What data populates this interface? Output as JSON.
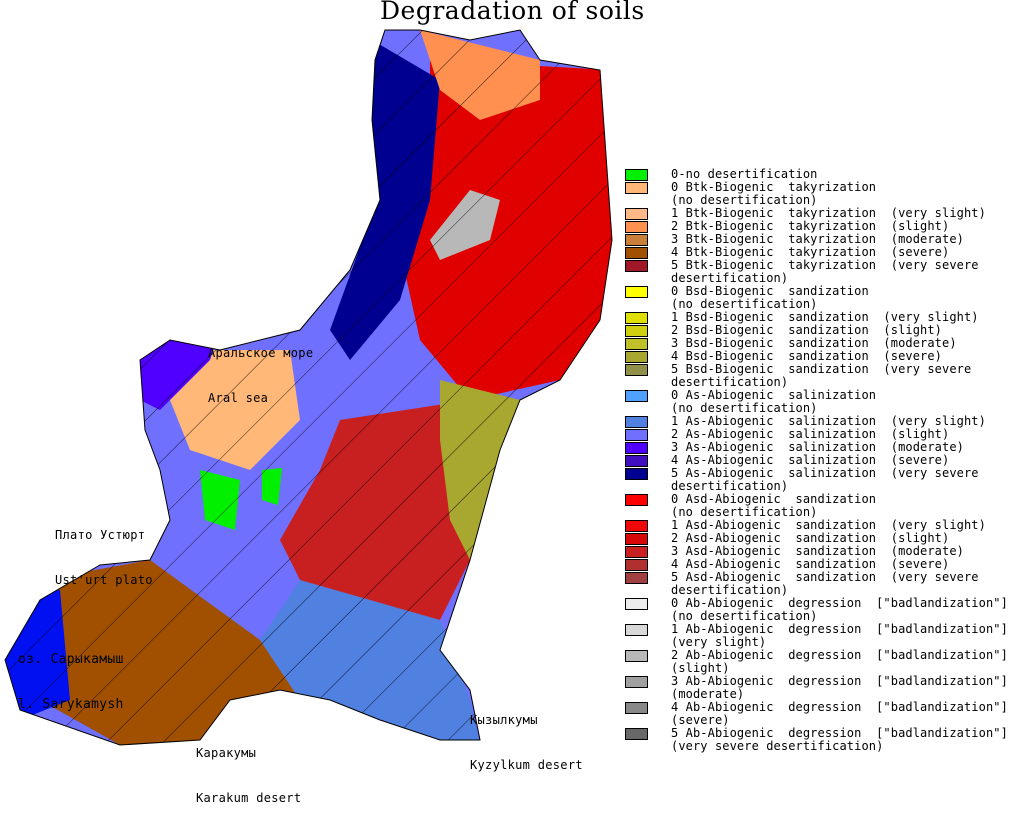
{
  "title": "Degradation of soils",
  "map_labels": {
    "aral_ru": "Аральское море",
    "aral_en": "Aral sea",
    "ustyurt_ru": "Плато Устюрт",
    "ustyurt_en": "Ust'urt plato",
    "sarykamysh_ru": "оз. Сарыкамыш",
    "sarykamysh_en": "l. Sarykamysh",
    "kyzylkum_ru": "Кызылкумы",
    "kyzylkum_en": "Kyzylkum desert",
    "karakum_ru": "Каракумы",
    "karakum_en": "Karakum desert"
  },
  "legend": [
    {
      "color": "#00f000",
      "line1": "0-no desertification",
      "line2": ""
    },
    {
      "color": "#ffb878",
      "line1": "0 Btk-Biogenic  takyrization",
      "line2": "(no desertification)"
    },
    {
      "color": "#ffb888",
      "line1": "1 Btk-Biogenic  takyrization  (very slight)",
      "line2": ""
    },
    {
      "color": "#ff9050",
      "line1": "2 Btk-Biogenic  takyrization  (slight)",
      "line2": ""
    },
    {
      "color": "#c88038",
      "line1": "3 Btk-Biogenic  takyrization  (moderate)",
      "line2": ""
    },
    {
      "color": "#a05000",
      "line1": "4 Btk-Biogenic  takyrization  (severe)",
      "line2": ""
    },
    {
      "color": "#a01828",
      "line1": "5 Btk-Biogenic  takyrization  (very severe",
      "line2": "desertification)"
    },
    {
      "color": "#ffff00",
      "line1": "0 Bsd-Biogenic  sandization",
      "line2": "(no desertification)"
    },
    {
      "color": "#e0e000",
      "line1": "1 Bsd-Biogenic  sandization  (very slight)",
      "line2": ""
    },
    {
      "color": "#d0d010",
      "line1": "2 Bsd-Biogenic  sandization  (slight)",
      "line2": ""
    },
    {
      "color": "#c0c028",
      "line1": "3 Bsd-Biogenic  sandization  (moderate)",
      "line2": ""
    },
    {
      "color": "#a8a830",
      "line1": "4 Bsd-Biogenic  sandization  (severe)",
      "line2": ""
    },
    {
      "color": "#909048",
      "line1": "5 Bsd-Biogenic  sandization  (very severe",
      "line2": "desertification)"
    },
    {
      "color": "#50a0ff",
      "line1": "0 As-Abiogenic  salinization",
      "line2": "(no desertification)"
    },
    {
      "color": "#5080e0",
      "line1": "1 As-Abiogenic  salinization  (very slight)",
      "line2": ""
    },
    {
      "color": "#7070ff",
      "line1": "2 As-Abiogenic  salinization  (slight)",
      "line2": ""
    },
    {
      "color": "#5000ff",
      "line1": "3 As-Abiogenic  salinization  (moderate)",
      "line2": ""
    },
    {
      "color": "#4010c0",
      "line1": "4 As-Abiogenic  salinization  (severe)",
      "line2": ""
    },
    {
      "color": "#000090",
      "line1": "5 As-Abiogenic  salinization  (very severe",
      "line2": "desertification)"
    },
    {
      "color": "#ff0000",
      "line1": "0 Asd-Abiogenic  sandization",
      "line2": "(no desertification)"
    },
    {
      "color": "#f00808",
      "line1": "1 Asd-Abiogenic  sandization  (very slight)",
      "line2": ""
    },
    {
      "color": "#d80808",
      "line1": "2 Asd-Abiogenic  sandization  (slight)",
      "line2": ""
    },
    {
      "color": "#c82020",
      "line1": "3 Asd-Abiogenic  sandization  (moderate)",
      "line2": ""
    },
    {
      "color": "#b03030",
      "line1": "4 Asd-Abiogenic  sandization  (severe)",
      "line2": ""
    },
    {
      "color": "#a04040",
      "line1": "5 Asd-Abiogenic  sandization  (very severe",
      "line2": "desertification)"
    },
    {
      "color": "#ececec",
      "line1": "0 Ab-Abiogenic  degression  [\"badlandization\"]",
      "line2": "(no desertification)"
    },
    {
      "color": "#d8d8d8",
      "line1": "1 Ab-Abiogenic  degression  [\"badlandization\"]",
      "line2": "(very slight)"
    },
    {
      "color": "#b8b8b8",
      "line1": "2 Ab-Abiogenic  degression  [\"badlandization\"]",
      "line2": "(slight)"
    },
    {
      "color": "#a0a0a0",
      "line1": "3 Ab-Abiogenic  degression  [\"badlandization\"]",
      "line2": "(moderate)"
    },
    {
      "color": "#888888",
      "line1": "4 Ab-Abiogenic  degression  [\"badlandization\"]",
      "line2": "(severe)"
    },
    {
      "color": "#686868",
      "line1": "5 Ab-Abiogenic  degression  [\"badlandization\"]",
      "line2": "(very severe desertification)"
    }
  ]
}
